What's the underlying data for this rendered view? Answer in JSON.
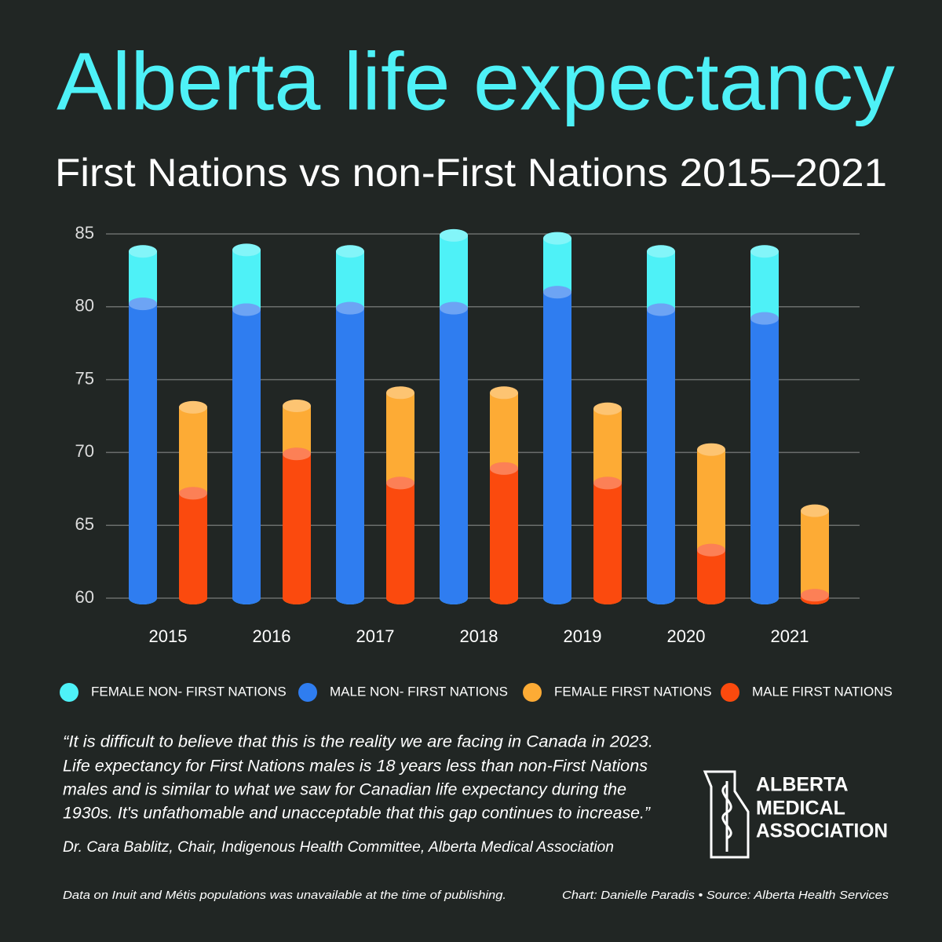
{
  "chart_data": {
    "type": "bar",
    "title": "Alberta life expectancy",
    "subtitle": "First Nations vs non-First Nations 2015–2021",
    "categories": [
      "2015",
      "2016",
      "2017",
      "2018",
      "2019",
      "2020",
      "2021"
    ],
    "series": [
      {
        "name": "FEMALE NON- FIRST NATIONS",
        "color": "#4ef1f7",
        "group": 0,
        "values": [
          83.8,
          83.9,
          83.8,
          84.9,
          84.7,
          83.8,
          83.8
        ]
      },
      {
        "name": "MALE NON- FIRST NATIONS",
        "color": "#2f7df0",
        "group": 0,
        "values": [
          80.2,
          79.8,
          79.9,
          79.9,
          81.0,
          79.8,
          79.2
        ]
      },
      {
        "name": "FEMALE FIRST NATIONS",
        "color": "#fdab35",
        "group": 1,
        "values": [
          73.1,
          73.2,
          74.1,
          74.1,
          73.0,
          70.2,
          66.0
        ]
      },
      {
        "name": "MALE FIRST NATIONS",
        "color": "#fb4a0e",
        "group": 1,
        "values": [
          67.2,
          69.9,
          67.9,
          68.9,
          67.9,
          63.3,
          60.2
        ]
      }
    ],
    "ylim": [
      60,
      85
    ],
    "yticks": [
      60,
      65,
      70,
      75,
      80,
      85
    ],
    "grid": true
  },
  "quote": [
    "“It is difficult to believe that this is the reality we are facing in Canada in 2023.",
    " Life expectancy for First Nations males is 18 years less than non-First Nations",
    "males and is similar to what we saw for Canadian life expectancy during the",
    "1930s. It's unfathomable and unacceptable that this gap continues to increase.”"
  ],
  "attribution": "Dr. Cara Bablitz, Chair, Indigenous Health Committee, Alberta Medical Association",
  "footnote": "Data on Inuit and Métis populations was unavailable at the time of publishing.",
  "credit": "Chart: Danielle Paradis •  Source: Alberta Health Services",
  "logo": [
    "ALBERTA",
    "MEDICAL",
    "ASSOCIATION"
  ]
}
